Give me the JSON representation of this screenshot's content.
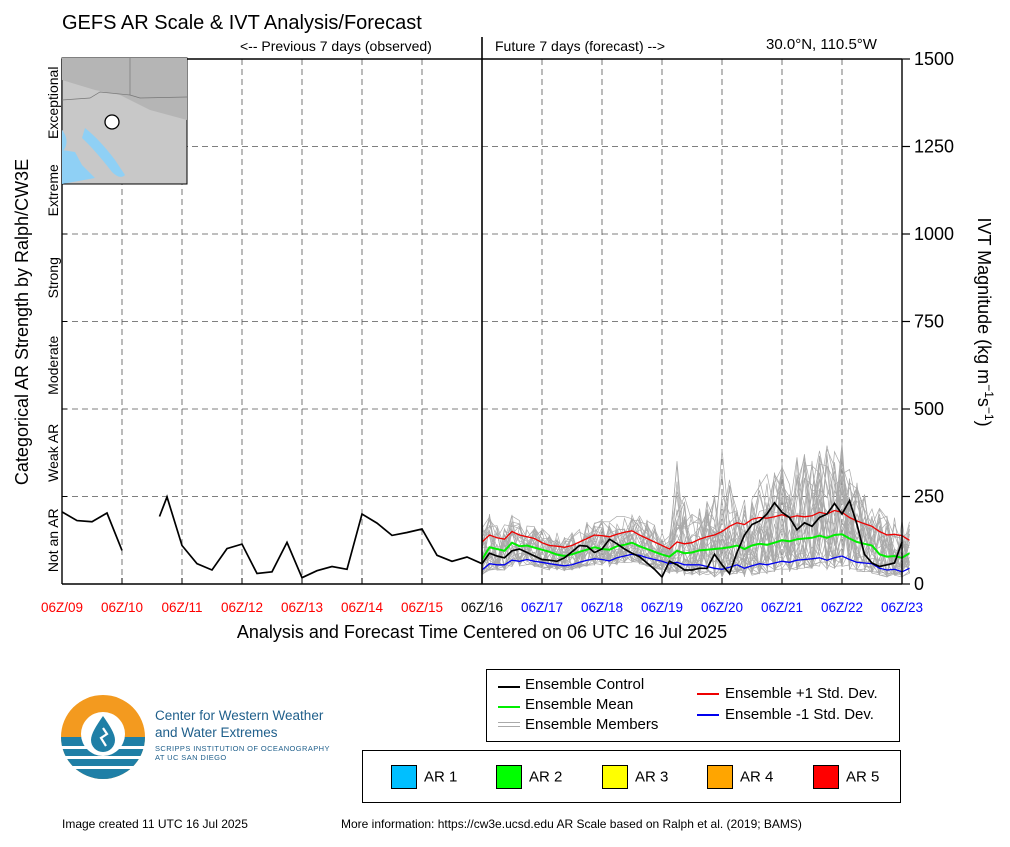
{
  "title": "GEFS AR Scale & IVT Analysis/Forecast",
  "previous_label": "<-- Previous 7 days (observed)",
  "future_label": "Future 7 days (forecast) -->",
  "location": "30.0°N, 110.5°W",
  "colors": {
    "observed": "#ff0000",
    "forecast": "#0000ff",
    "control": "#000000",
    "mean": "#00ee00",
    "plus_sd": "#ee0000",
    "minus_sd": "#0000ee",
    "members": "#aaaaaa",
    "water": "#8fd0f5",
    "land": "#c8c8c8",
    "logo_orange": "#f39a1f",
    "logo_blue": "#1f7fa6"
  },
  "chart_data": {
    "type": "line",
    "title": "GEFS AR Scale & IVT Analysis/Forecast",
    "xlabel": "Analysis and Forecast Time Centered on 06 UTC 16 Jul 2025",
    "ylabel_right": "IVT Magnitude (kg m⁻¹s⁻¹)",
    "ylabel_left": "Categorical AR Strength by Ralph/CW3E",
    "ylim": [
      0,
      1500
    ],
    "yticks": [
      "0",
      "250",
      "500",
      "750",
      "1000",
      "1250",
      "1500"
    ],
    "ytick_values": [
      0,
      250,
      500,
      750,
      1000,
      1250,
      1500
    ],
    "x_ticks": [
      {
        "label": "06Z/09",
        "period": "observed"
      },
      {
        "label": "06Z/10",
        "period": "observed"
      },
      {
        "label": "06Z/11",
        "period": "observed"
      },
      {
        "label": "06Z/12",
        "period": "observed"
      },
      {
        "label": "06Z/13",
        "period": "observed"
      },
      {
        "label": "06Z/14",
        "period": "observed"
      },
      {
        "label": "06Z/15",
        "period": "observed"
      },
      {
        "label": "06Z/16",
        "period": "analysis"
      },
      {
        "label": "06Z/17",
        "period": "forecast"
      },
      {
        "label": "06Z/18",
        "period": "forecast"
      },
      {
        "label": "06Z/19",
        "period": "forecast"
      },
      {
        "label": "06Z/20",
        "period": "forecast"
      },
      {
        "label": "06Z/21",
        "period": "forecast"
      },
      {
        "label": "06Z/22",
        "period": "forecast"
      },
      {
        "label": "06Z/23",
        "period": "forecast"
      }
    ],
    "categories_left": [
      "Not an AR",
      "Weak AR",
      "Moderate",
      "Strong",
      "Extreme",
      "Exceptional"
    ],
    "x_units": "days since 06Z/09",
    "grid": true,
    "series": [
      {
        "name": "Ensemble Control",
        "segments": [
          [
            [
              0,
              206
            ],
            [
              0.25,
              181
            ],
            [
              0.5,
              178
            ],
            [
              0.75,
              203
            ],
            [
              1.0,
              96
            ]
          ],
          [
            [
              1.625,
              193
            ],
            [
              1.75,
              249
            ],
            [
              2.0,
              110
            ],
            [
              2.25,
              58
            ],
            [
              2.5,
              40
            ],
            [
              2.75,
              101
            ],
            [
              3.0,
              114
            ],
            [
              3.25,
              30
            ],
            [
              3.5,
              35
            ],
            [
              3.75,
              119
            ],
            [
              4.0,
              18
            ],
            [
              4.25,
              38
            ],
            [
              4.5,
              50
            ],
            [
              4.75,
              42
            ],
            [
              5.0,
              200
            ],
            [
              5.25,
              174
            ],
            [
              5.5,
              139
            ],
            [
              5.75,
              147
            ],
            [
              6.0,
              157
            ],
            [
              6.25,
              82
            ],
            [
              6.5,
              65
            ],
            [
              6.75,
              77
            ],
            [
              7.0,
              58
            ],
            [
              7.125,
              88
            ],
            [
              7.25,
              80
            ],
            [
              7.375,
              75
            ],
            [
              7.5,
              95
            ],
            [
              7.625,
              100
            ],
            [
              7.75,
              90
            ],
            [
              7.875,
              80
            ],
            [
              8.0,
              70
            ],
            [
              8.125,
              68
            ],
            [
              8.25,
              65
            ],
            [
              8.375,
              75
            ],
            [
              8.5,
              92
            ],
            [
              8.625,
              110
            ],
            [
              8.75,
              108
            ],
            [
              8.875,
              90
            ],
            [
              9.0,
              100
            ],
            [
              9.125,
              128
            ],
            [
              9.25,
              115
            ],
            [
              9.375,
              100
            ],
            [
              9.5,
              88
            ],
            [
              9.625,
              78
            ],
            [
              9.75,
              60
            ],
            [
              9.875,
              42
            ],
            [
              10.0,
              20
            ],
            [
              10.125,
              65
            ],
            [
              10.25,
              55
            ],
            [
              10.375,
              40
            ],
            [
              10.5,
              40
            ],
            [
              10.625,
              45
            ],
            [
              10.75,
              45
            ],
            [
              10.875,
              85
            ],
            [
              11.0,
              55
            ],
            [
              11.125,
              30
            ],
            [
              11.25,
              90
            ],
            [
              11.375,
              140
            ],
            [
              11.5,
              170
            ],
            [
              11.625,
              180
            ],
            [
              11.75,
              200
            ],
            [
              11.875,
              232
            ],
            [
              12.0,
              205
            ],
            [
              12.125,
              190
            ],
            [
              12.25,
              155
            ],
            [
              12.375,
              175
            ],
            [
              12.5,
              165
            ],
            [
              12.625,
              190
            ],
            [
              12.75,
              200
            ],
            [
              12.875,
              230
            ],
            [
              13.0,
              200
            ],
            [
              13.125,
              238
            ],
            [
              13.25,
              170
            ],
            [
              13.375,
              85
            ],
            [
              13.5,
              60
            ],
            [
              13.625,
              50
            ],
            [
              13.75,
              55
            ],
            [
              13.875,
              60
            ],
            [
              14.0,
              120
            ]
          ]
        ]
      },
      {
        "name": "Ensemble Mean",
        "x_start": 7.0,
        "x_step": 0.125,
        "values": [
          70,
          105,
          100,
          95,
          118,
          108,
          110,
          104,
          98,
          92,
          84,
          80,
          85,
          92,
          98,
          105,
          100,
          98,
          108,
          112,
          118,
          108,
          100,
          92,
          84,
          78,
          95,
          88,
          90,
          96,
          98,
          100,
          102,
          105,
          110,
          100,
          110,
          115,
          112,
          118,
          125,
          122,
          128,
          130,
          132,
          138,
          132,
          140,
          142,
          130,
          120,
          115,
          110,
          85,
          78,
          80,
          75,
          88
        ]
      },
      {
        "name": "Ensemble +1 Std. Dev.",
        "x_start": 7.0,
        "x_step": 0.125,
        "values": [
          120,
          140,
          132,
          128,
          150,
          140,
          135,
          130,
          118,
          110,
          108,
          105,
          110,
          120,
          130,
          140,
          138,
          135,
          142,
          148,
          152,
          140,
          130,
          120,
          110,
          100,
          120,
          115,
          118,
          128,
          135,
          140,
          150,
          165,
          175,
          170,
          185,
          190,
          188,
          192,
          198,
          190,
          195,
          192,
          195,
          205,
          200,
          210,
          205,
          190,
          180,
          172,
          165,
          150,
          140,
          142,
          138,
          125
        ]
      },
      {
        "name": "Ensemble -1 Std. Dev.",
        "x_start": 7.0,
        "x_step": 0.125,
        "values": [
          40,
          58,
          55,
          55,
          68,
          65,
          70,
          65,
          62,
          58,
          55,
          52,
          55,
          62,
          68,
          72,
          70,
          66,
          75,
          80,
          85,
          82,
          75,
          70,
          65,
          58,
          62,
          55,
          55,
          55,
          50,
          45,
          42,
          48,
          55,
          45,
          52,
          58,
          55,
          60,
          65,
          62,
          68,
          70,
          72,
          75,
          68,
          75,
          80,
          70,
          62,
          60,
          58,
          45,
          40,
          42,
          35,
          45
        ]
      },
      {
        "name": "Ensemble Members",
        "x_start": 7.0,
        "x_step": 0.125,
        "count": 30,
        "spread_envelope": {
          "low": [
            25,
            40,
            40,
            40,
            50,
            50,
            55,
            50,
            45,
            40,
            40,
            38,
            40,
            45,
            50,
            55,
            52,
            50,
            55,
            60,
            62,
            58,
            50,
            45,
            40,
            30,
            30,
            25,
            25,
            25,
            25,
            20,
            20,
            25,
            30,
            20,
            25,
            30,
            30,
            35,
            40,
            35,
            40,
            45,
            45,
            50,
            40,
            45,
            50,
            40,
            35,
            35,
            30,
            25,
            20,
            25,
            20,
            30
          ],
          "high": [
            180,
            200,
            170,
            170,
            200,
            185,
            180,
            170,
            160,
            150,
            150,
            145,
            150,
            165,
            180,
            195,
            190,
            180,
            200,
            205,
            210,
            195,
            185,
            170,
            150,
            140,
            360,
            260,
            210,
            220,
            240,
            260,
            470,
            300,
            260,
            250,
            270,
            300,
            320,
            330,
            360,
            350,
            400,
            380,
            360,
            390,
            420,
            400,
            410,
            330,
            290,
            260,
            250,
            220,
            200,
            210,
            190,
            180
          ]
        }
      }
    ]
  },
  "legend": {
    "items": [
      {
        "label": "Ensemble Control"
      },
      {
        "label": "Ensemble Mean"
      },
      {
        "label": "Ensemble Members"
      },
      {
        "label": "Ensemble +1 Std. Dev."
      },
      {
        "label": "Ensemble -1 Std. Dev."
      }
    ]
  },
  "ar_scale": [
    {
      "label": "AR 1",
      "color": "#00bfff"
    },
    {
      "label": "AR 2",
      "color": "#00ff00"
    },
    {
      "label": "AR 3",
      "color": "#ffff00"
    },
    {
      "label": "AR 4",
      "color": "#ffa500"
    },
    {
      "label": "AR 5",
      "color": "#ff0000"
    }
  ],
  "logo": {
    "line1": "Center for Western Weather",
    "line2": "and Water Extremes",
    "line3": "SCRIPPS INSTITUTION OF OCEANOGRAPHY",
    "line4": "AT UC SAN DIEGO"
  },
  "footer": {
    "created": "Image created 11 UTC 16 Jul 2025",
    "more_info": "More information: https://cw3e.ucsd.edu AR Scale based on Ralph et al. (2019; BAMS)"
  }
}
